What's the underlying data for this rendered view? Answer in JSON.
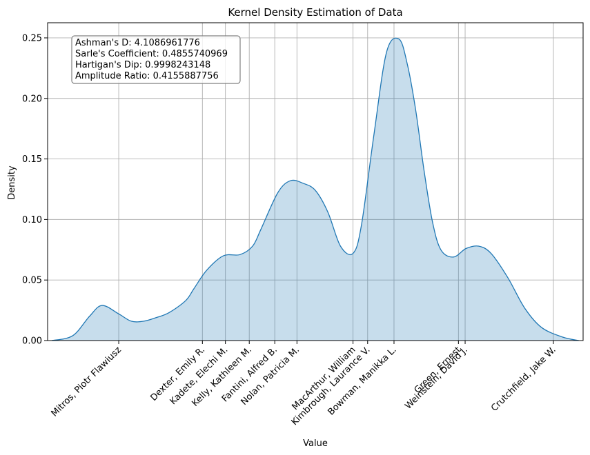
{
  "chart_data": {
    "type": "area",
    "title": "Kernel Density Estimation of Data",
    "xlabel": "Value",
    "ylabel": "Density",
    "xlim": [
      -0.4,
      12.4
    ],
    "ylim": [
      0,
      0.2625
    ],
    "yticks": [
      0.0,
      0.05,
      0.1,
      0.15,
      0.2,
      0.25
    ],
    "ytick_labels": [
      "0.00",
      "0.05",
      "0.10",
      "0.15",
      "0.20",
      "0.25"
    ],
    "grid": true,
    "colors": {
      "line": "#1f77b4",
      "fill": "#1f77b4",
      "grid": "#b0b0b0"
    },
    "series": [
      {
        "x": [
          -0.3,
          0.2,
          0.6,
          0.9,
          1.3,
          1.6,
          1.9,
          2.2,
          2.5,
          2.9,
          3.1,
          3.4,
          3.8,
          4.2,
          4.5,
          4.7,
          5.1,
          5.4,
          5.7,
          6.0,
          6.3,
          6.6,
          6.9,
          7.1,
          7.4,
          7.7,
          8.0,
          8.2,
          8.4,
          8.6,
          8.8,
          9.0,
          9.3,
          9.6,
          9.9,
          10.2,
          10.6,
          11.0,
          11.4,
          11.9,
          12.3
        ],
        "y": [
          0.0,
          0.004,
          0.02,
          0.029,
          0.022,
          0.016,
          0.016,
          0.019,
          0.023,
          0.033,
          0.043,
          0.058,
          0.07,
          0.071,
          0.078,
          0.092,
          0.122,
          0.132,
          0.13,
          0.124,
          0.106,
          0.078,
          0.072,
          0.095,
          0.17,
          0.238,
          0.249,
          0.228,
          0.19,
          0.14,
          0.098,
          0.075,
          0.069,
          0.076,
          0.078,
          0.072,
          0.052,
          0.027,
          0.011,
          0.003,
          0.0
        ]
      }
    ],
    "rug_lines": [
      {
        "x": 1.3,
        "label": "Mitros, Piotr Flawiusz"
      },
      {
        "x": 3.3,
        "label": "Dexter, Emily R."
      },
      {
        "x": 3.85,
        "label": "Kadete, Elechi M."
      },
      {
        "x": 4.42,
        "label": "Kelly, Kathleen M."
      },
      {
        "x": 5.03,
        "label": "Fantini, Alfred B."
      },
      {
        "x": 5.56,
        "label": "Nolan, Patricia M."
      },
      {
        "x": 6.9,
        "label": "MacArthur, William"
      },
      {
        "x": 7.25,
        "label": "Kimbrough, Laurance V."
      },
      {
        "x": 7.88,
        "label": "Bowman, Manikka L."
      },
      {
        "x": 9.42,
        "label": "Green, Ernest"
      },
      {
        "x": 9.58,
        "label": "Weinstein, David J."
      },
      {
        "x": 11.69,
        "label": "Crutchfield, Jake W."
      }
    ],
    "annotations": [
      "Ashman's D: 4.1086961776",
      "Sarle's Coefficient: 0.4855740969",
      "Hartigan's Dip: 0.9998243148",
      "Amplitude Ratio: 0.4155887756"
    ]
  }
}
